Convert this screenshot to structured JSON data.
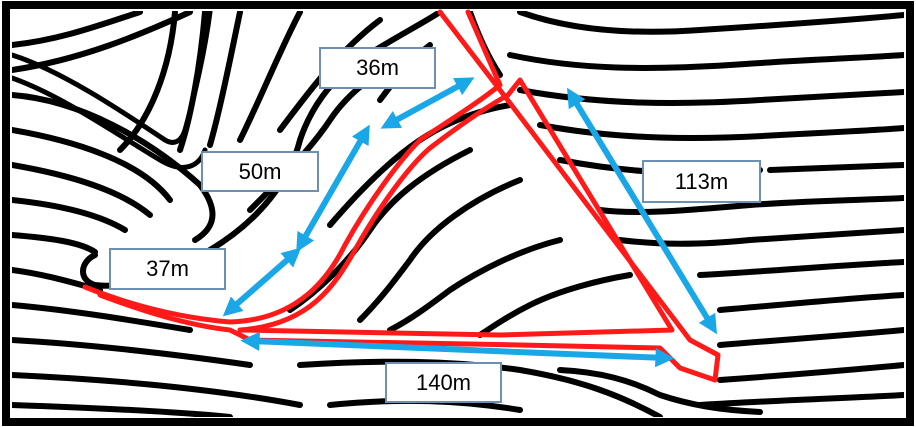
{
  "colors": {
    "contour": "#000000",
    "route": "#ff1a1a",
    "measure_arrow": "#1aa7e8",
    "frame": "#000000",
    "label_border": "#6d8fb4"
  },
  "measurements": [
    {
      "id": "m36",
      "text": "36m"
    },
    {
      "id": "m50",
      "text": "50m"
    },
    {
      "id": "m37",
      "text": "37m"
    },
    {
      "id": "m113",
      "text": "113m"
    },
    {
      "id": "m140",
      "text": "140m"
    }
  ]
}
